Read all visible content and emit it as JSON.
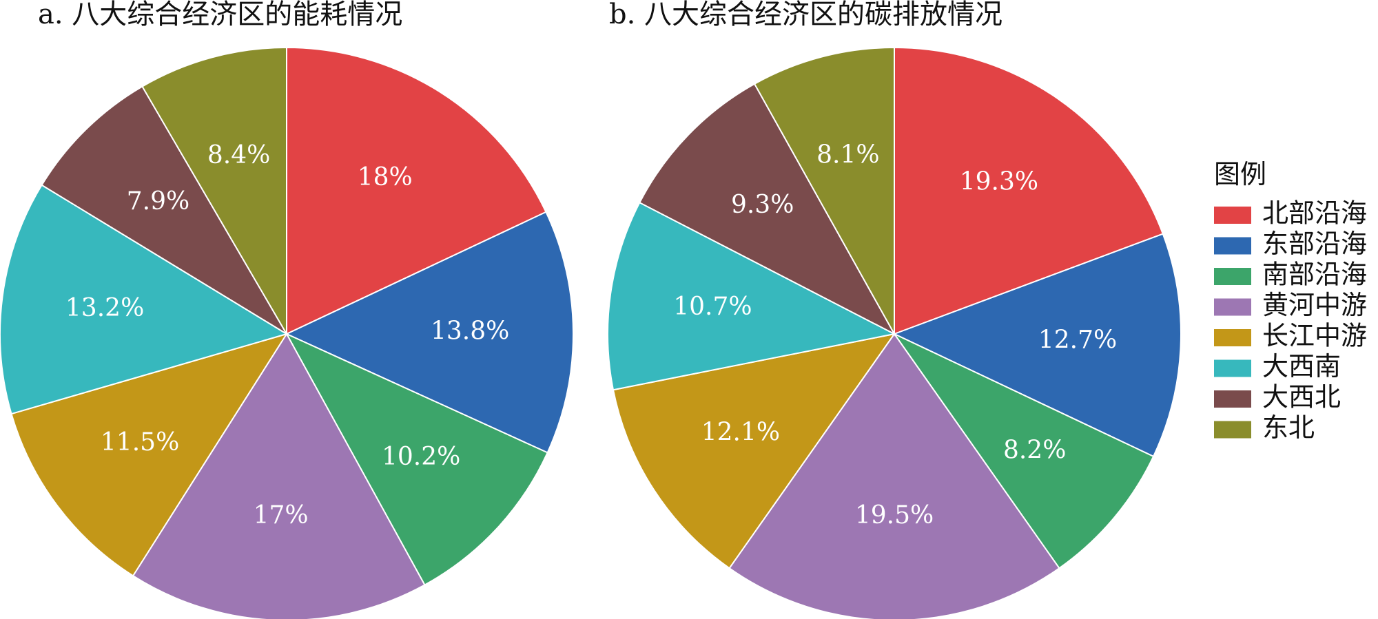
{
  "chart_data": [
    {
      "type": "pie",
      "title": "a. 八大综合经济区的能耗情况",
      "categories": [
        "北部沿海",
        "东部沿海",
        "南部沿海",
        "黄河中游",
        "长江中游",
        "大西南",
        "大西北",
        "东北"
      ],
      "values": [
        18.0,
        13.8,
        10.2,
        17.0,
        11.5,
        13.2,
        7.9,
        8.4
      ],
      "labels": [
        "18%",
        "13.8%",
        "10.2%",
        "17%",
        "11.5%",
        "13.2%",
        "7.9%",
        "8.4%"
      ]
    },
    {
      "type": "pie",
      "title": "b. 八大综合经济区的碳排放情况",
      "categories": [
        "北部沿海",
        "东部沿海",
        "南部沿海",
        "黄河中游",
        "长江中游",
        "大西南",
        "大西北",
        "东北"
      ],
      "values": [
        19.3,
        12.7,
        8.2,
        19.5,
        12.1,
        10.7,
        9.3,
        8.1
      ],
      "labels": [
        "19.3%",
        "12.7%",
        "8.2%",
        "19.5%",
        "12.1%",
        "10.7%",
        "9.3%",
        "8.1%"
      ]
    }
  ],
  "legend": {
    "title": "图例",
    "items": [
      "北部沿海",
      "东部沿海",
      "南部沿海",
      "黄河中游",
      "长江中游",
      "大西南",
      "大西北",
      "东北"
    ]
  },
  "colors": [
    "#e24345",
    "#2d68b1",
    "#3ca56a",
    "#9d77b3",
    "#c39718",
    "#37b8bd",
    "#7a4b4c",
    "#8a8d2c"
  ]
}
